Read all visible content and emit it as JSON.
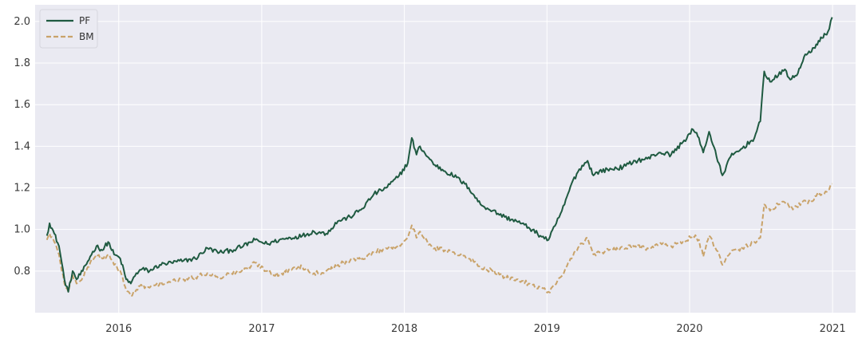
{
  "colors": {
    "pf": "#1f5a41",
    "bm": "#c9a36a",
    "plot_bg": "#eaeaf2",
    "grid": "#ffffff"
  },
  "chart_data": {
    "type": "line",
    "title": "",
    "xlabel": "",
    "ylabel": "",
    "x_range": [
      "2015-06",
      "2021-03"
    ],
    "ylim": [
      0.6,
      2.08
    ],
    "x_ticks": [
      "2016",
      "2017",
      "2018",
      "2019",
      "2020",
      "2021"
    ],
    "y_ticks": [
      "0.8",
      "1.0",
      "1.2",
      "1.4",
      "1.6",
      "1.8",
      "2.0"
    ],
    "grid": true,
    "legend": "top-left",
    "series": [
      {
        "name": "PF",
        "style": "solid",
        "color": "#1f5a41",
        "x": [
          "2015-07-01",
          "2015-07-08",
          "2015-07-20",
          "2015-08-01",
          "2015-08-15",
          "2015-08-25",
          "2015-09-05",
          "2015-09-15",
          "2015-10-01",
          "2015-10-20",
          "2015-11-05",
          "2015-11-20",
          "2015-12-05",
          "2015-12-20",
          "2016-01-05",
          "2016-01-20",
          "2016-02-01",
          "2016-02-15",
          "2016-03-01",
          "2016-03-20",
          "2016-04-15",
          "2016-05-15",
          "2016-06-15",
          "2016-07-15",
          "2016-08-15",
          "2016-09-15",
          "2016-10-15",
          "2016-11-15",
          "2016-12-15",
          "2017-01-15",
          "2017-02-15",
          "2017-03-15",
          "2017-04-15",
          "2017-05-15",
          "2017-06-15",
          "2017-07-15",
          "2017-08-15",
          "2017-09-15",
          "2017-10-15",
          "2017-11-15",
          "2017-12-15",
          "2018-01-10",
          "2018-01-20",
          "2018-02-01",
          "2018-02-10",
          "2018-03-01",
          "2018-03-20",
          "2018-04-15",
          "2018-05-15",
          "2018-06-15",
          "2018-07-15",
          "2018-08-15",
          "2018-09-15",
          "2018-10-15",
          "2018-11-15",
          "2018-12-15",
          "2019-01-05",
          "2019-01-25",
          "2019-02-15",
          "2019-03-05",
          "2019-03-25",
          "2019-04-15",
          "2019-04-30",
          "2019-05-15",
          "2019-06-15",
          "2019-07-15",
          "2019-08-15",
          "2019-09-15",
          "2019-10-15",
          "2019-11-15",
          "2019-12-15",
          "2020-01-10",
          "2020-01-25",
          "2020-02-05",
          "2020-02-20",
          "2020-03-10",
          "2020-03-25",
          "2020-04-15",
          "2020-05-15",
          "2020-06-15",
          "2020-06-30",
          "2020-07-10",
          "2020-07-25",
          "2020-08-15",
          "2020-09-01",
          "2020-09-15",
          "2020-10-01",
          "2020-10-20",
          "2020-11-05",
          "2020-11-20",
          "2020-12-05",
          "2020-12-20",
          "2020-12-31"
        ],
        "values": [
          0.97,
          1.03,
          0.98,
          0.92,
          0.76,
          0.7,
          0.8,
          0.76,
          0.8,
          0.87,
          0.92,
          0.9,
          0.94,
          0.88,
          0.86,
          0.76,
          0.74,
          0.79,
          0.81,
          0.8,
          0.83,
          0.84,
          0.85,
          0.86,
          0.91,
          0.89,
          0.9,
          0.92,
          0.95,
          0.93,
          0.95,
          0.96,
          0.97,
          0.99,
          0.98,
          1.04,
          1.06,
          1.1,
          1.17,
          1.2,
          1.25,
          1.32,
          1.44,
          1.36,
          1.4,
          1.35,
          1.31,
          1.28,
          1.25,
          1.2,
          1.12,
          1.09,
          1.06,
          1.04,
          1.01,
          0.97,
          0.95,
          1.03,
          1.12,
          1.22,
          1.29,
          1.33,
          1.26,
          1.28,
          1.29,
          1.3,
          1.33,
          1.34,
          1.37,
          1.36,
          1.42,
          1.48,
          1.44,
          1.37,
          1.47,
          1.35,
          1.26,
          1.35,
          1.39,
          1.44,
          1.52,
          1.76,
          1.71,
          1.74,
          1.77,
          1.72,
          1.74,
          1.83,
          1.85,
          1.89,
          1.92,
          1.95,
          2.02
        ]
      },
      {
        "name": "BM",
        "style": "dashed",
        "color": "#c9a36a",
        "x": [
          "2015-07-01",
          "2015-07-08",
          "2015-07-20",
          "2015-08-01",
          "2015-08-15",
          "2015-08-25",
          "2015-09-05",
          "2015-09-15",
          "2015-10-01",
          "2015-10-20",
          "2015-11-05",
          "2015-11-20",
          "2015-12-05",
          "2015-12-20",
          "2016-01-05",
          "2016-01-20",
          "2016-02-01",
          "2016-02-15",
          "2016-03-01",
          "2016-03-20",
          "2016-04-15",
          "2016-05-15",
          "2016-06-15",
          "2016-07-15",
          "2016-08-15",
          "2016-09-15",
          "2016-10-15",
          "2016-11-15",
          "2016-12-15",
          "2017-01-15",
          "2017-02-15",
          "2017-03-15",
          "2017-04-15",
          "2017-05-15",
          "2017-06-15",
          "2017-07-15",
          "2017-08-15",
          "2017-09-15",
          "2017-10-15",
          "2017-11-15",
          "2017-12-15",
          "2018-01-10",
          "2018-01-20",
          "2018-02-01",
          "2018-02-10",
          "2018-03-01",
          "2018-03-20",
          "2018-04-15",
          "2018-05-15",
          "2018-06-15",
          "2018-07-15",
          "2018-08-15",
          "2018-09-15",
          "2018-10-15",
          "2018-11-15",
          "2018-12-15",
          "2019-01-05",
          "2019-01-25",
          "2019-02-15",
          "2019-03-05",
          "2019-03-25",
          "2019-04-15",
          "2019-04-30",
          "2019-05-15",
          "2019-06-15",
          "2019-07-15",
          "2019-08-15",
          "2019-09-15",
          "2019-10-15",
          "2019-11-15",
          "2019-12-15",
          "2020-01-10",
          "2020-01-25",
          "2020-02-05",
          "2020-02-20",
          "2020-03-10",
          "2020-03-25",
          "2020-04-15",
          "2020-05-15",
          "2020-06-15",
          "2020-06-30",
          "2020-07-10",
          "2020-07-25",
          "2020-08-15",
          "2020-09-01",
          "2020-09-15",
          "2020-10-01",
          "2020-10-20",
          "2020-11-05",
          "2020-11-20",
          "2020-12-05",
          "2020-12-20",
          "2020-12-31"
        ],
        "values": [
          0.95,
          0.98,
          0.94,
          0.88,
          0.74,
          0.7,
          0.78,
          0.74,
          0.77,
          0.84,
          0.88,
          0.86,
          0.88,
          0.83,
          0.8,
          0.71,
          0.68,
          0.71,
          0.73,
          0.72,
          0.74,
          0.75,
          0.76,
          0.77,
          0.79,
          0.77,
          0.79,
          0.8,
          0.84,
          0.8,
          0.78,
          0.81,
          0.82,
          0.79,
          0.8,
          0.83,
          0.85,
          0.86,
          0.89,
          0.91,
          0.92,
          0.96,
          1.02,
          0.96,
          0.99,
          0.94,
          0.91,
          0.9,
          0.88,
          0.86,
          0.82,
          0.8,
          0.77,
          0.76,
          0.74,
          0.72,
          0.7,
          0.74,
          0.8,
          0.86,
          0.92,
          0.96,
          0.88,
          0.89,
          0.9,
          0.91,
          0.92,
          0.91,
          0.93,
          0.92,
          0.94,
          0.97,
          0.95,
          0.87,
          0.97,
          0.9,
          0.83,
          0.89,
          0.91,
          0.94,
          0.96,
          1.12,
          1.09,
          1.12,
          1.13,
          1.1,
          1.11,
          1.14,
          1.13,
          1.16,
          1.17,
          1.19,
          1.22
        ]
      }
    ]
  }
}
